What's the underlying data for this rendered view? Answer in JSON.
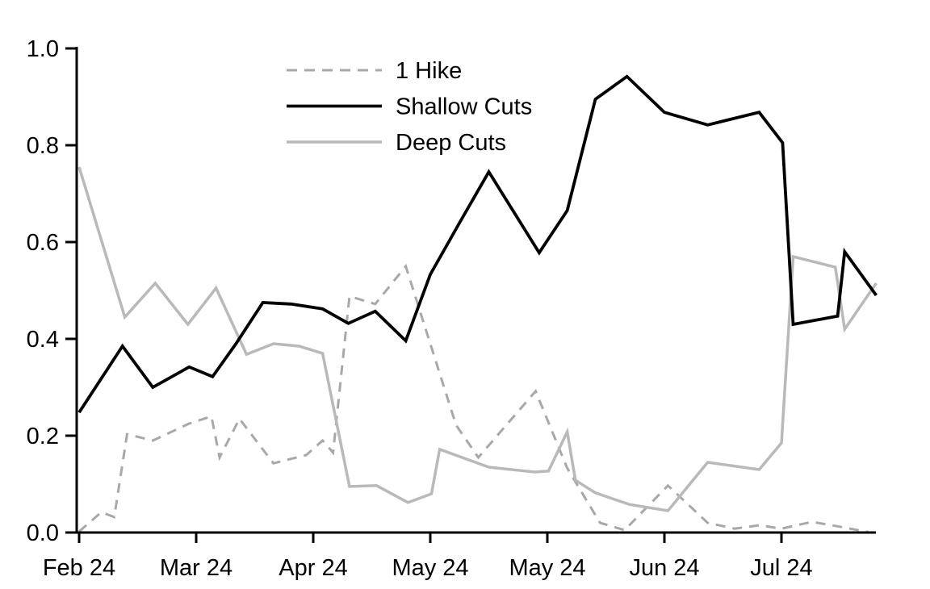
{
  "chart_data": {
    "type": "line",
    "title": "",
    "xlabel": "",
    "ylabel": "",
    "grid": "off",
    "x_axis": {
      "tick_labels": [
        "Feb 24",
        "Mar 24",
        "Apr 24",
        "May 24",
        "May 24",
        "Jun 24",
        "Jul 24"
      ],
      "tick_positions": [
        0,
        1,
        2,
        3,
        4,
        5,
        6
      ],
      "range": [
        -0.03,
        6.82
      ]
    },
    "y_axis": {
      "tick_labels": [
        "0.0",
        "0.2",
        "0.4",
        "0.6",
        "0.8",
        "1.0"
      ],
      "tick_values": [
        0.0,
        0.2,
        0.4,
        0.6,
        0.8,
        1.0
      ],
      "range": [
        0.0,
        1.0
      ]
    },
    "legend": {
      "position": "top-left-inside",
      "entries": [
        "1 Hike",
        "Shallow Cuts",
        "Deep Cuts"
      ]
    },
    "series": [
      {
        "name": "1 Hike",
        "style": "dashed",
        "color": "#a8a8a8",
        "width": 3,
        "points": [
          [
            0.0,
            0.002
          ],
          [
            0.19,
            0.042
          ],
          [
            0.3,
            0.032
          ],
          [
            0.41,
            0.203
          ],
          [
            0.63,
            0.19
          ],
          [
            0.94,
            0.225
          ],
          [
            1.13,
            0.24
          ],
          [
            1.2,
            0.155
          ],
          [
            1.37,
            0.235
          ],
          [
            1.66,
            0.143
          ],
          [
            1.94,
            0.16
          ],
          [
            2.08,
            0.19
          ],
          [
            2.17,
            0.165
          ],
          [
            2.31,
            0.488
          ],
          [
            2.53,
            0.472
          ],
          [
            2.79,
            0.55
          ],
          [
            3.22,
            0.222
          ],
          [
            3.41,
            0.155
          ],
          [
            3.9,
            0.292
          ],
          [
            4.17,
            0.133
          ],
          [
            4.45,
            0.02
          ],
          [
            4.66,
            0.005
          ],
          [
            5.03,
            0.097
          ],
          [
            5.37,
            0.02
          ],
          [
            5.6,
            0.008
          ],
          [
            5.81,
            0.015
          ],
          [
            6.0,
            0.008
          ],
          [
            6.26,
            0.022
          ],
          [
            6.5,
            0.012
          ],
          [
            6.74,
            0.001
          ]
        ]
      },
      {
        "name": "Deep Cuts",
        "style": "solid",
        "color": "#b9b9b9",
        "width": 3.5,
        "points": [
          [
            0.0,
            0.755
          ],
          [
            0.39,
            0.445
          ],
          [
            0.65,
            0.515
          ],
          [
            0.93,
            0.43
          ],
          [
            1.17,
            0.505
          ],
          [
            1.43,
            0.368
          ],
          [
            1.66,
            0.39
          ],
          [
            1.88,
            0.385
          ],
          [
            2.08,
            0.37
          ],
          [
            2.31,
            0.095
          ],
          [
            2.54,
            0.097
          ],
          [
            2.81,
            0.062
          ],
          [
            3.01,
            0.08
          ],
          [
            3.08,
            0.172
          ],
          [
            3.5,
            0.135
          ],
          [
            3.89,
            0.125
          ],
          [
            4.01,
            0.127
          ],
          [
            4.17,
            0.208
          ],
          [
            4.24,
            0.108
          ],
          [
            4.41,
            0.082
          ],
          [
            4.7,
            0.058
          ],
          [
            5.03,
            0.045
          ],
          [
            5.37,
            0.145
          ],
          [
            5.81,
            0.13
          ],
          [
            6.0,
            0.185
          ],
          [
            6.1,
            0.57
          ],
          [
            6.46,
            0.548
          ],
          [
            6.54,
            0.42
          ],
          [
            6.81,
            0.515
          ]
        ]
      },
      {
        "name": "Shallow Cuts",
        "style": "solid",
        "color": "#000000",
        "width": 3.8,
        "points": [
          [
            0.0,
            0.248
          ],
          [
            0.37,
            0.385
          ],
          [
            0.63,
            0.3
          ],
          [
            0.94,
            0.342
          ],
          [
            1.14,
            0.322
          ],
          [
            1.34,
            0.39
          ],
          [
            1.57,
            0.475
          ],
          [
            1.81,
            0.472
          ],
          [
            2.08,
            0.462
          ],
          [
            2.3,
            0.432
          ],
          [
            2.53,
            0.457
          ],
          [
            2.79,
            0.396
          ],
          [
            3.0,
            0.533
          ],
          [
            3.25,
            0.64
          ],
          [
            3.5,
            0.745
          ],
          [
            3.93,
            0.578
          ],
          [
            4.17,
            0.665
          ],
          [
            4.41,
            0.895
          ],
          [
            4.68,
            0.942
          ],
          [
            5.0,
            0.868
          ],
          [
            5.37,
            0.842
          ],
          [
            5.81,
            0.868
          ],
          [
            6.01,
            0.805
          ],
          [
            6.1,
            0.43
          ],
          [
            6.48,
            0.447
          ],
          [
            6.54,
            0.58
          ],
          [
            6.81,
            0.49
          ]
        ]
      }
    ],
    "legend_order": [
      "1 Hike",
      "Shallow Cuts",
      "Deep Cuts"
    ],
    "axis_color": "#000000",
    "background_color": "#ffffff"
  }
}
